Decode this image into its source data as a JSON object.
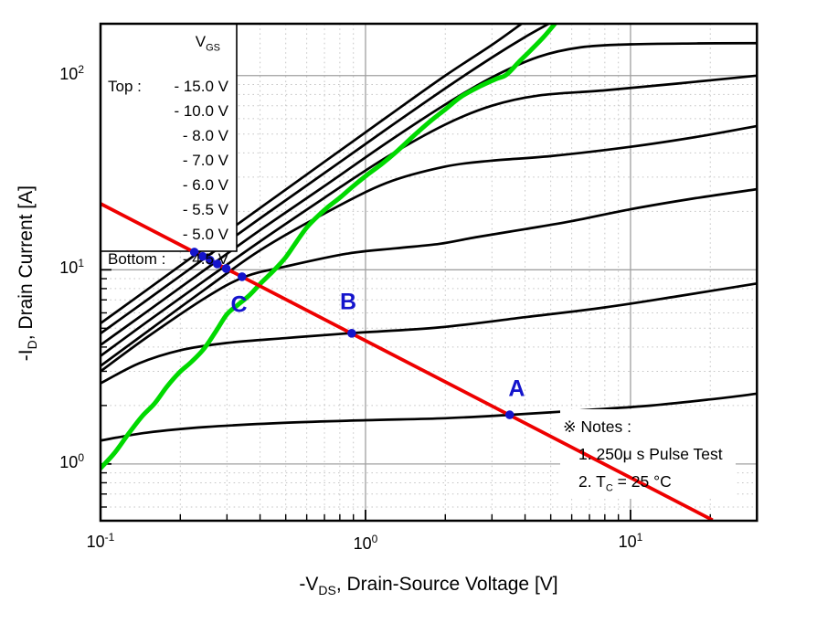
{
  "chart_data": {
    "type": "line",
    "title": "",
    "xlabel": "-VDS, Drain-Source Voltage [V]",
    "ylabel": "-ID, Drain Current [A]",
    "xlabel_parts": {
      "pre": "-V",
      "sub": "DS",
      "post": ", Drain-Source Voltage [V]"
    },
    "ylabel_parts": {
      "pre": "-I",
      "sub": "D",
      "post": ", Drain Current [A]"
    },
    "xscale": "log",
    "yscale": "log",
    "xlim": [
      0.1,
      30
    ],
    "ylim": [
      0.51,
      185
    ],
    "grid": "major-solid, minor-dotted",
    "x_ticks": [
      {
        "base": "10",
        "exp": "-1",
        "value": 0.1
      },
      {
        "base": "10",
        "exp": "0",
        "value": 1
      },
      {
        "base": "10",
        "exp": "1",
        "value": 10
      }
    ],
    "y_ticks": [
      {
        "base": "10",
        "exp": "0",
        "value": 1
      },
      {
        "base": "10",
        "exp": "1",
        "value": 10
      },
      {
        "base": "10",
        "exp": "2",
        "value": 100
      }
    ],
    "series": [
      {
        "name": "VGS = -15.0 V",
        "color": "#000000",
        "points": [
          [
            0.1,
            5.3
          ],
          [
            0.15,
            7.9
          ],
          [
            0.25,
            13.1
          ],
          [
            0.4,
            20.8
          ],
          [
            0.7,
            36
          ],
          [
            1.2,
            61
          ],
          [
            2.0,
            100
          ],
          [
            3.0,
            144
          ],
          [
            3.9,
            186
          ]
        ]
      },
      {
        "name": "VGS = -10.0 V",
        "color": "#000000",
        "points": [
          [
            0.1,
            4.7
          ],
          [
            0.15,
            7.0
          ],
          [
            0.25,
            11.6
          ],
          [
            0.4,
            18.4
          ],
          [
            0.7,
            31.5
          ],
          [
            1.2,
            53
          ],
          [
            2.0,
            86
          ],
          [
            3.0,
            124
          ],
          [
            4.0,
            158
          ],
          [
            4.95,
            186
          ]
        ]
      },
      {
        "name": "VGS = -8.0 V",
        "color": "#000000",
        "points": [
          [
            0.1,
            4.1
          ],
          [
            0.15,
            6.1
          ],
          [
            0.25,
            10.1
          ],
          [
            0.4,
            16
          ],
          [
            0.7,
            27
          ],
          [
            1.2,
            45
          ],
          [
            2.0,
            71
          ],
          [
            3.0,
            98
          ],
          [
            4.5,
            125
          ],
          [
            6.5,
            140
          ],
          [
            10,
            145
          ],
          [
            18,
            146.5
          ],
          [
            30,
            147
          ]
        ]
      },
      {
        "name": "VGS = -7.0 V",
        "color": "#000000",
        "points": [
          [
            0.1,
            3.6
          ],
          [
            0.15,
            5.4
          ],
          [
            0.25,
            8.9
          ],
          [
            0.4,
            14
          ],
          [
            0.7,
            23.5
          ],
          [
            1.2,
            38
          ],
          [
            2.0,
            56
          ],
          [
            3.0,
            70
          ],
          [
            4.5,
            79
          ],
          [
            8,
            84
          ],
          [
            15,
            91
          ],
          [
            30,
            100
          ]
        ]
      },
      {
        "name": "VGS = -6.0 V",
        "color": "#000000",
        "points": [
          [
            0.1,
            3.2
          ],
          [
            0.15,
            4.8
          ],
          [
            0.25,
            8.0
          ],
          [
            0.4,
            12.6
          ],
          [
            0.7,
            19.5
          ],
          [
            1.2,
            28
          ],
          [
            2.0,
            34
          ],
          [
            3.0,
            36.5
          ],
          [
            5,
            38.5
          ],
          [
            10,
            43
          ],
          [
            18,
            48.5
          ],
          [
            30,
            55
          ]
        ]
      },
      {
        "name": "VGS = -5.5 V",
        "color": "#000000",
        "points": [
          [
            0.1,
            3.0
          ],
          [
            0.15,
            4.5
          ],
          [
            0.25,
            7.2
          ],
          [
            0.35,
            9.2
          ],
          [
            0.5,
            10.4
          ],
          [
            0.85,
            12.1
          ],
          [
            1.3,
            12.9
          ],
          [
            1.9,
            13.6
          ],
          [
            2.6,
            14.7
          ],
          [
            4,
            16.2
          ],
          [
            6,
            17.8
          ],
          [
            10,
            20.5
          ],
          [
            17,
            23.2
          ],
          [
            30,
            26
          ]
        ]
      },
      {
        "name": "VGS = -5.0 V",
        "color": "#000000",
        "points": [
          [
            0.1,
            2.6
          ],
          [
            0.14,
            3.3
          ],
          [
            0.2,
            3.85
          ],
          [
            0.3,
            4.2
          ],
          [
            0.5,
            4.45
          ],
          [
            0.887,
            4.72
          ],
          [
            1.9,
            5.05
          ],
          [
            4,
            5.7
          ],
          [
            8,
            6.4
          ],
          [
            15,
            7.3
          ],
          [
            30,
            8.5
          ]
        ]
      },
      {
        "name": "VGS = -4.5 V",
        "color": "#000000",
        "points": [
          [
            0.1,
            1.32
          ],
          [
            0.15,
            1.45
          ],
          [
            0.25,
            1.55
          ],
          [
            0.5,
            1.63
          ],
          [
            1.0,
            1.68
          ],
          [
            2.0,
            1.72
          ],
          [
            3.5,
            1.79
          ],
          [
            7,
            1.9
          ],
          [
            12,
            2.0
          ],
          [
            20,
            2.15
          ],
          [
            30,
            2.3
          ]
        ]
      }
    ],
    "green_boundary_curve": {
      "name": "linear/saturation boundary",
      "color": "#00d900",
      "points": [
        [
          0.1,
          0.95
        ],
        [
          0.113,
          1.14
        ],
        [
          0.127,
          1.42
        ],
        [
          0.143,
          1.75
        ],
        [
          0.16,
          2.05
        ],
        [
          0.178,
          2.5
        ],
        [
          0.198,
          2.95
        ],
        [
          0.22,
          3.35
        ],
        [
          0.245,
          3.9
        ],
        [
          0.272,
          4.8
        ],
        [
          0.3,
          5.9
        ],
        [
          0.33,
          6.6
        ],
        [
          0.365,
          7.4
        ],
        [
          0.405,
          8.6
        ],
        [
          0.45,
          9.9
        ],
        [
          0.5,
          11.6
        ],
        [
          0.55,
          14.0
        ],
        [
          0.6,
          16.5
        ],
        [
          0.65,
          18.5
        ],
        [
          0.72,
          21.0
        ],
        [
          0.8,
          23.5
        ],
        [
          0.9,
          27.0
        ],
        [
          1.02,
          31.0
        ],
        [
          1.15,
          35.0
        ],
        [
          1.32,
          41.0
        ],
        [
          1.52,
          49.0
        ],
        [
          1.75,
          58.0
        ],
        [
          2.0,
          67.0
        ],
        [
          2.3,
          78.0
        ],
        [
          2.7,
          88.0
        ],
        [
          3.1,
          96.0
        ],
        [
          3.4,
          101
        ],
        [
          3.8,
          118
        ],
        [
          4.2,
          135
        ],
        [
          4.7,
          158
        ],
        [
          5.2,
          186
        ]
      ]
    },
    "red_load_line": {
      "name": "load line",
      "color": "#ee0000",
      "points": [
        [
          0.1,
          21.9
        ],
        [
          20.4,
          0.514
        ]
      ]
    },
    "operating_points": [
      {
        "v": 0.226,
        "i": 12.33
      },
      {
        "v": 0.243,
        "i": 11.72
      },
      {
        "v": 0.259,
        "i": 11.2
      },
      {
        "v": 0.276,
        "i": 10.71
      },
      {
        "v": 0.298,
        "i": 10.15
      },
      {
        "v": 0.342,
        "i": 9.21
      },
      {
        "v": 0.887,
        "i": 4.71,
        "label": "B"
      },
      {
        "v": 3.5,
        "i": 1.79,
        "label": "A"
      }
    ],
    "point_labels": [
      {
        "text": "A",
        "v": 3.72,
        "i": 2.42
      },
      {
        "text": "B",
        "v": 0.86,
        "i": 6.8
      },
      {
        "text": "C",
        "v": 0.333,
        "i": 6.55
      }
    ],
    "legend_position": "upper-left",
    "colors": {
      "curves": "#000000",
      "boundary": "#00d900",
      "load_line": "#ee0000",
      "markers": "#1414cc",
      "grid_major": "#a0a0a0",
      "grid_minor": "#c6c6c6"
    }
  },
  "legend": {
    "header": {
      "pre": "V",
      "sub": "GS"
    },
    "rows": [
      {
        "prefix": "Top :",
        "value": "- 15.0 V"
      },
      {
        "prefix": "",
        "value": "- 10.0 V"
      },
      {
        "prefix": "",
        "value": "- 8.0 V"
      },
      {
        "prefix": "",
        "value": "- 7.0 V"
      },
      {
        "prefix": "",
        "value": "- 6.0 V"
      },
      {
        "prefix": "",
        "value": "- 5.5 V"
      },
      {
        "prefix": "",
        "value": "- 5.0 V"
      },
      {
        "prefix": "Bottom :",
        "value": "- 4.5 V"
      }
    ]
  },
  "notes": {
    "title": "※ Notes :",
    "item1": "1. 250μ s Pulse Test",
    "item2_pre": "2. T",
    "item2_sub": "C",
    "item2_post": " = 25 °C"
  }
}
